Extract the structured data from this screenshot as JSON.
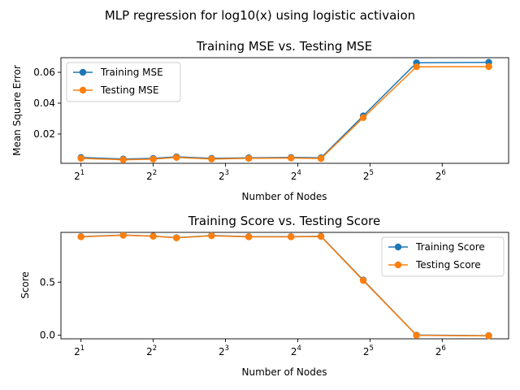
{
  "suptitle": "MLP regression for log10(x) using logistic activaion",
  "colors": {
    "training": "#1f77b4",
    "testing": "#ff7f0e"
  },
  "chart_data": [
    {
      "type": "line",
      "title": "Training MSE vs. Testing MSE",
      "xlabel": "Number of Nodes",
      "ylabel": "Mean Square Error",
      "x_scale": "log2",
      "x_ticks": [
        {
          "value": 2,
          "base": "2",
          "exp": "1"
        },
        {
          "value": 4,
          "base": "2",
          "exp": "2"
        },
        {
          "value": 8,
          "base": "2",
          "exp": "3"
        },
        {
          "value": 16,
          "base": "2",
          "exp": "4"
        },
        {
          "value": 32,
          "base": "2",
          "exp": "5"
        },
        {
          "value": 64,
          "base": "2",
          "exp": "6"
        }
      ],
      "y_ticks": [
        "0.02",
        "0.04",
        "0.06"
      ],
      "xlim": [
        1.65,
        121
      ],
      "ylim": [
        0.001,
        0.0695
      ],
      "legend_position": "upper-left",
      "x": [
        2,
        3,
        4,
        5,
        7,
        10,
        15,
        20,
        30,
        50,
        100
      ],
      "series": [
        {
          "name": "Training MSE",
          "color_key": "training",
          "values": [
            0.0048,
            0.0038,
            0.0042,
            0.0052,
            0.0042,
            0.0046,
            0.0048,
            0.0046,
            0.0318,
            0.0662,
            0.0665
          ]
        },
        {
          "name": "Testing MSE",
          "color_key": "testing",
          "values": [
            0.0042,
            0.0033,
            0.0037,
            0.0048,
            0.0038,
            0.0042,
            0.0044,
            0.0041,
            0.0306,
            0.0636,
            0.0637
          ]
        }
      ]
    },
    {
      "type": "line",
      "title": "Training Score vs. Testing Score",
      "xlabel": "Number of Nodes",
      "ylabel": "Score",
      "x_scale": "log2",
      "x_ticks": [
        {
          "value": 2,
          "base": "2",
          "exp": "1"
        },
        {
          "value": 4,
          "base": "2",
          "exp": "2"
        },
        {
          "value": 8,
          "base": "2",
          "exp": "3"
        },
        {
          "value": 16,
          "base": "2",
          "exp": "4"
        },
        {
          "value": 32,
          "base": "2",
          "exp": "5"
        },
        {
          "value": 64,
          "base": "2",
          "exp": "6"
        }
      ],
      "y_ticks": [
        "0.0",
        "0.5"
      ],
      "xlim": [
        1.65,
        121
      ],
      "ylim": [
        -0.035,
        0.97
      ],
      "legend_position": "upper-right",
      "x": [
        2,
        3,
        4,
        5,
        7,
        10,
        15,
        20,
        30,
        50,
        100
      ],
      "series": [
        {
          "name": "Training Score",
          "color_key": "training",
          "values": [
            0.93,
            0.945,
            0.935,
            0.92,
            0.94,
            0.93,
            0.93,
            0.933,
            0.52,
            0.0,
            -0.005
          ]
        },
        {
          "name": "Testing Score",
          "color_key": "testing",
          "values": [
            0.928,
            0.943,
            0.933,
            0.918,
            0.938,
            0.928,
            0.928,
            0.931,
            0.515,
            -0.002,
            -0.007
          ]
        }
      ]
    }
  ]
}
